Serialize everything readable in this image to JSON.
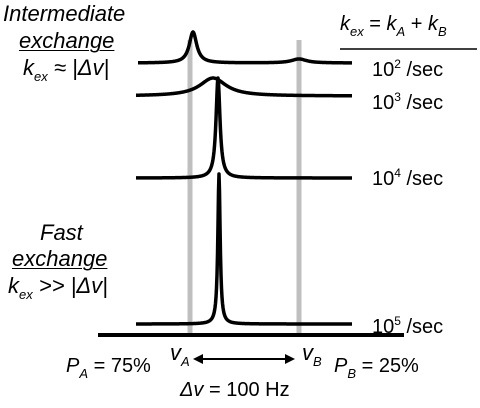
{
  "left_labels": {
    "intermediate_title": "Intermediate",
    "intermediate_underlined": "exchange",
    "intermediate_cond_k": "k",
    "intermediate_cond_sub": "ex",
    "intermediate_cond_rest": "≈ |Δv|",
    "fast_title": "Fast",
    "fast_underlined": "exchange",
    "fast_cond_k": "k",
    "fast_cond_sub": "ex",
    "fast_cond_rest": ">> |Δv|"
  },
  "equation": {
    "k": "k",
    "k_sub": "ex",
    "equals": "=",
    "ka": "k",
    "ka_sub": "A",
    "plus": "+",
    "kb": "k",
    "kb_sub": "B"
  },
  "rates": [
    {
      "base": "10",
      "exp": "2",
      "unit": "/sec"
    },
    {
      "base": "10",
      "exp": "3",
      "unit": "/sec"
    },
    {
      "base": "10",
      "exp": "4",
      "unit": "/sec"
    },
    {
      "base": "10",
      "exp": "5",
      "unit": "/sec"
    }
  ],
  "axis": {
    "va": "v",
    "va_sub": "A",
    "vb": "v",
    "vb_sub": "B",
    "delta": "Δv = 100 Hz"
  },
  "populations": {
    "pa": "P",
    "pa_sub": "A",
    "pa_val": "= 75%",
    "pb": "P",
    "pb_sub": "B",
    "pb_val": "= 25%"
  },
  "colors": {
    "line": "#000000",
    "marker": "#bfbfbf"
  }
}
